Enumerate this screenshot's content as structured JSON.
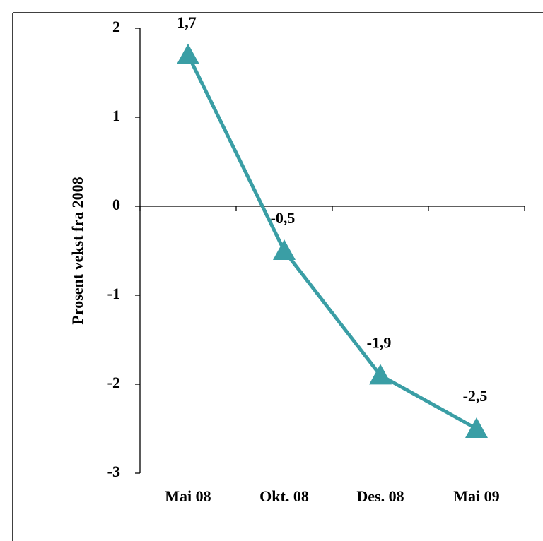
{
  "chart_data": {
    "type": "line",
    "y_label": "Prosent vekst fra 2008",
    "categories": [
      "Mai 08",
      "Okt. 08",
      "Des. 08",
      "Mai 09"
    ],
    "values": [
      1.7,
      -0.5,
      -1.9,
      -2.5
    ],
    "value_labels": [
      "1,7",
      "-0,5",
      "-1,9",
      "-2,5"
    ],
    "color": "#3a9ea5",
    "ylim": [
      -3,
      2
    ],
    "yticks": [
      -3,
      -2,
      -1,
      0,
      1,
      2
    ],
    "grid": false
  }
}
